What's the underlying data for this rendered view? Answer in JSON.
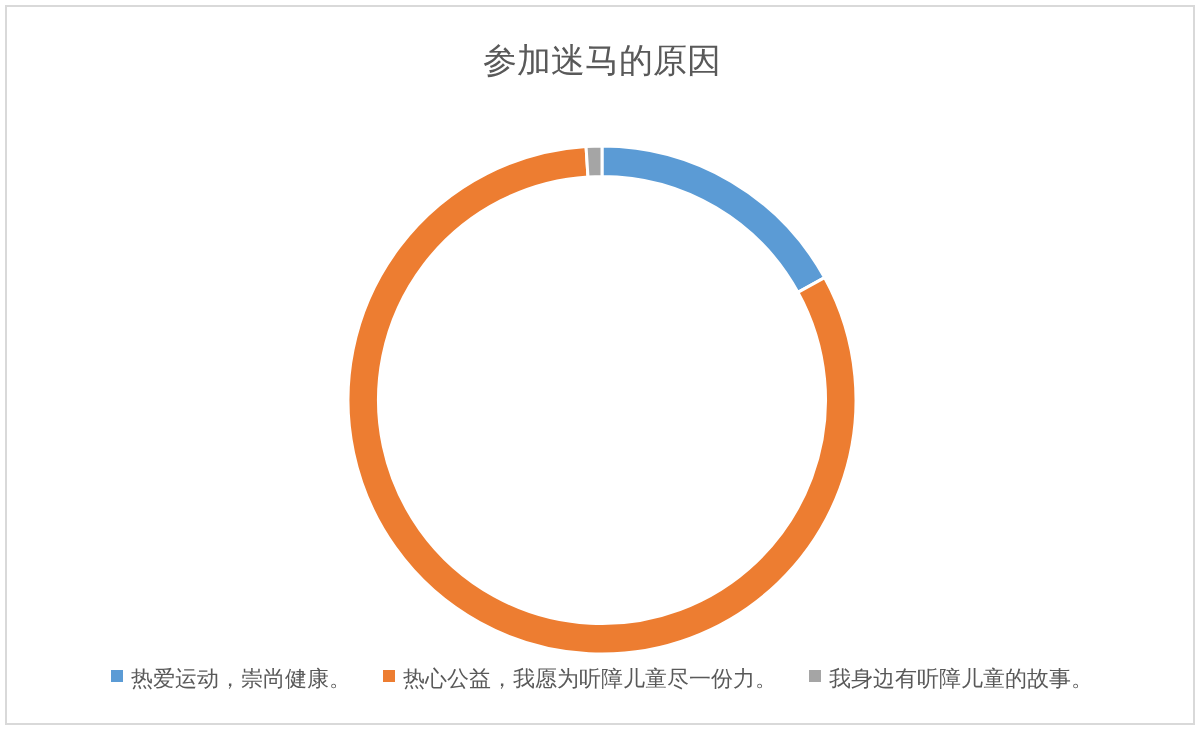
{
  "chart_data": {
    "type": "donut",
    "title": "参加迷马的原因",
    "categories": [
      "热爱运动，崇尚健康。",
      "热心公益，我愿为听障儿童尽一份力。",
      "我身边有听障儿童的故事。"
    ],
    "values": [
      17,
      82,
      1
    ],
    "colors": [
      "#5b9bd5",
      "#ed7d31",
      "#a5a5a5"
    ],
    "legend": "bottom"
  }
}
